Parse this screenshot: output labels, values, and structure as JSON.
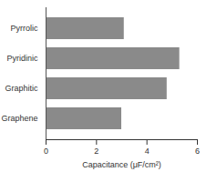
{
  "chart_data": {
    "type": "bar",
    "orientation": "horizontal",
    "categories": [
      "Pyrrolic",
      "Pyridinic",
      "Graphitic",
      "Graphene"
    ],
    "values": [
      3.1,
      5.3,
      4.8,
      3.0
    ],
    "color": "#8a8a8a",
    "x_label": "Capacitance (μF/cm²)",
    "xlim": [
      0,
      6
    ],
    "xticks": [
      0,
      2,
      4,
      6
    ],
    "grid": false
  }
}
